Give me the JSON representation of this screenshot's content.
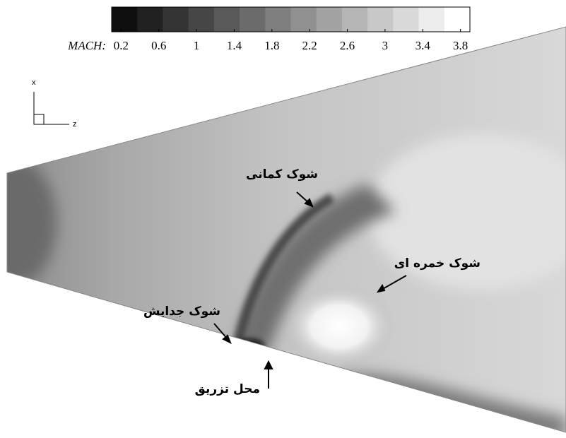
{
  "colorbar": {
    "label": "MACH:",
    "ticks": [
      0.2,
      0.6,
      1,
      1.4,
      1.8,
      2.2,
      2.6,
      3,
      3.4,
      3.8
    ],
    "lim": [
      0.1,
      3.9
    ]
  },
  "axes": {
    "x": "x",
    "z": "z"
  },
  "annotations": [
    "شوک کمانی",
    "شوک خمره ای",
    "شوک جدایش",
    "محل تزریق"
  ]
}
